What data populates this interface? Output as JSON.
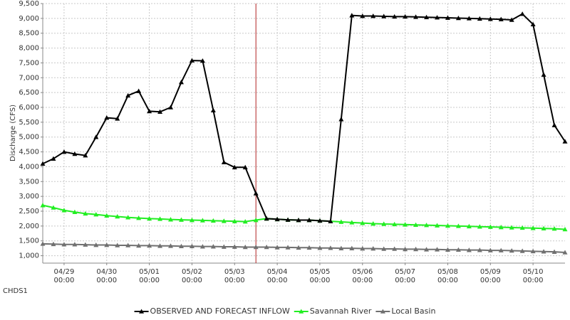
{
  "chart_data": {
    "type": "line",
    "y_label": "Discharge (CFS)",
    "station": "CHDS1",
    "categories": [
      "04/28 12:00",
      "04/28 18:00",
      "04/29 00:00",
      "04/29 06:00",
      "04/29 12:00",
      "04/29 18:00",
      "04/30 00:00",
      "04/30 06:00",
      "04/30 12:00",
      "04/30 18:00",
      "05/01 00:00",
      "05/01 06:00",
      "05/01 12:00",
      "05/01 18:00",
      "05/02 00:00",
      "05/02 06:00",
      "05/02 12:00",
      "05/02 18:00",
      "05/03 00:00",
      "05/03 06:00",
      "05/03 12:00",
      "05/03 18:00",
      "05/04 00:00",
      "05/04 06:00",
      "05/04 12:00",
      "05/04 18:00",
      "05/05 00:00",
      "05/05 06:00",
      "05/05 12:00",
      "05/05 18:00",
      "05/06 00:00",
      "05/06 06:00",
      "05/06 12:00",
      "05/06 18:00",
      "05/07 00:00",
      "05/07 06:00",
      "05/07 12:00",
      "05/07 18:00",
      "05/08 00:00",
      "05/08 06:00",
      "05/08 12:00",
      "05/08 18:00",
      "05/09 00:00",
      "05/09 06:00",
      "05/09 12:00",
      "05/09 18:00",
      "05/10 00:00",
      "05/10 06:00",
      "05/10 12:00",
      "05/10 18:00"
    ],
    "series": [
      {
        "name": "OBSERVED AND FORECAST INFLOW",
        "color": "#000000",
        "values": [
          4100,
          4270,
          4500,
          4430,
          4380,
          5000,
          5650,
          5620,
          6400,
          6550,
          5870,
          5850,
          6000,
          6850,
          7580,
          7570,
          5900,
          4150,
          3980,
          3980,
          3100,
          2250,
          2230,
          2210,
          2200,
          2200,
          2180,
          2160,
          5600,
          9100,
          9080,
          9080,
          9070,
          9060,
          9060,
          9050,
          9040,
          9030,
          9020,
          9010,
          9000,
          8990,
          8980,
          8970,
          8950,
          9150,
          8800,
          7100,
          5400,
          4850
        ]
      },
      {
        "name": "Savannah River",
        "color": "#22ee22",
        "values": [
          2700,
          2620,
          2530,
          2470,
          2420,
          2390,
          2350,
          2320,
          2290,
          2270,
          2250,
          2240,
          2220,
          2210,
          2200,
          2190,
          2180,
          2170,
          2160,
          2150,
          2200,
          2250,
          2230,
          2210,
          2200,
          2200,
          2180,
          2160,
          2140,
          2120,
          2100,
          2080,
          2070,
          2060,
          2050,
          2040,
          2030,
          2020,
          2010,
          2000,
          1990,
          1980,
          1970,
          1960,
          1950,
          1940,
          1930,
          1920,
          1910,
          1890
        ]
      },
      {
        "name": "Local Basin",
        "color": "#707070",
        "values": [
          1400,
          1390,
          1380,
          1380,
          1370,
          1360,
          1360,
          1350,
          1350,
          1340,
          1340,
          1330,
          1330,
          1320,
          1320,
          1310,
          1310,
          1300,
          1300,
          1290,
          1290,
          1290,
          1280,
          1280,
          1270,
          1270,
          1260,
          1260,
          1250,
          1250,
          1240,
          1240,
          1230,
          1230,
          1220,
          1220,
          1210,
          1210,
          1200,
          1200,
          1190,
          1190,
          1180,
          1180,
          1170,
          1160,
          1150,
          1140,
          1130,
          1110
        ]
      }
    ],
    "ylim": [
      750,
      9500
    ],
    "yticks": [
      {
        "value": 1000,
        "label": "1,000"
      },
      {
        "value": 1500,
        "label": "1,500"
      },
      {
        "value": 2000,
        "label": "2,000"
      },
      {
        "value": 2500,
        "label": "2,500"
      },
      {
        "value": 3000,
        "label": "3,000"
      },
      {
        "value": 3500,
        "label": "3,500"
      },
      {
        "value": 4000,
        "label": "4,000"
      },
      {
        "value": 4500,
        "label": "4,500"
      },
      {
        "value": 5000,
        "label": "5,000"
      },
      {
        "value": 5500,
        "label": "5,500"
      },
      {
        "value": 6000,
        "label": "6,000"
      },
      {
        "value": 6500,
        "label": "6,500"
      },
      {
        "value": 7000,
        "label": "7,000"
      },
      {
        "value": 7500,
        "label": "7,500"
      },
      {
        "value": 8000,
        "label": "8,000"
      },
      {
        "value": 8500,
        "label": "8,500"
      },
      {
        "value": 9000,
        "label": "9,000"
      },
      {
        "value": 9500,
        "label": "9,500"
      }
    ],
    "xticks": [
      {
        "date": "04/29",
        "time": "00:00"
      },
      {
        "date": "04/30",
        "time": "00:00"
      },
      {
        "date": "05/01",
        "time": "00:00"
      },
      {
        "date": "05/02",
        "time": "00:00"
      },
      {
        "date": "05/03",
        "time": "00:00"
      },
      {
        "date": "05/04",
        "time": "00:00"
      },
      {
        "date": "05/05",
        "time": "00:00"
      },
      {
        "date": "05/06",
        "time": "00:00"
      },
      {
        "date": "05/07",
        "time": "00:00"
      },
      {
        "date": "05/08",
        "time": "00:00"
      },
      {
        "date": "05/09",
        "time": "00:00"
      },
      {
        "date": "05/10",
        "time": "00:00"
      }
    ],
    "marker_line": {
      "x": "05/03 12:00",
      "color": "#b22222"
    },
    "grid": true,
    "legend": "bottom"
  }
}
